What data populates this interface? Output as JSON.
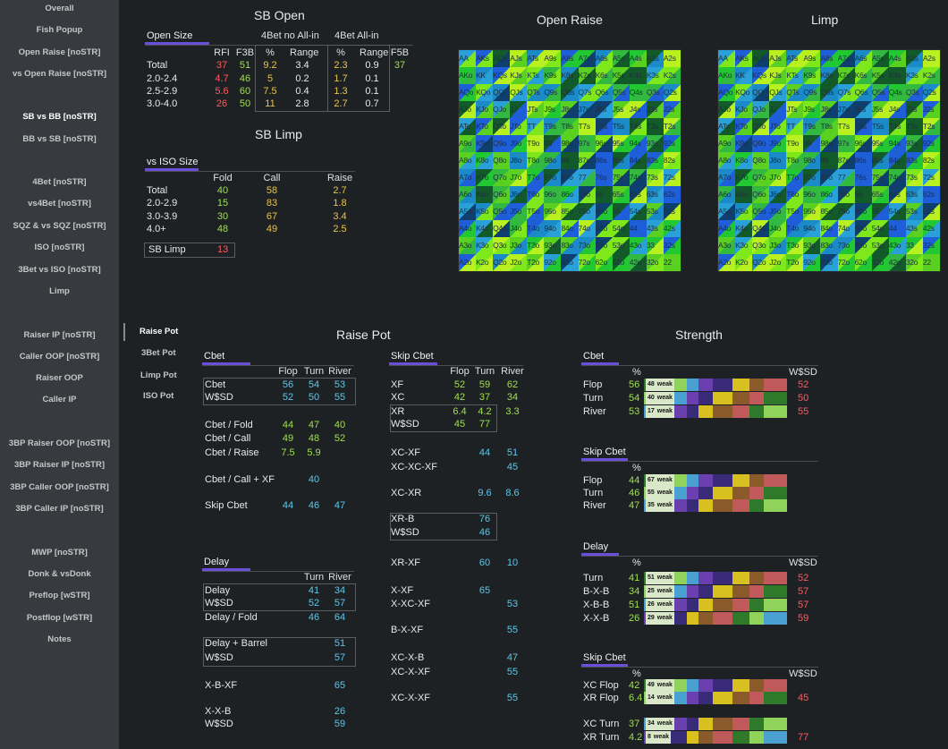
{
  "sidebar": {
    "items": [
      {
        "label": "Overall"
      },
      {
        "label": "Fish Popup"
      },
      {
        "label": "Open Raise [noSTR]"
      },
      {
        "label": "vs Open Raise [noSTR]"
      },
      {
        "label": "SB vs BB [noSTR]",
        "active": true
      },
      {
        "label": "BB vs SB [noSTR]"
      },
      {
        "label": "4Bet [noSTR]"
      },
      {
        "label": "vs4Bet [noSTR]"
      },
      {
        "label": "SQZ & vs SQZ [noSTR]"
      },
      {
        "label": "ISO [noSTR]"
      },
      {
        "label": "3Bet vs ISO [noSTR]"
      },
      {
        "label": "Limp"
      },
      {
        "label": "Raiser IP [noSTR]"
      },
      {
        "label": "Caller OOP [noSTR]"
      },
      {
        "label": "Raiser OOP"
      },
      {
        "label": "Caller IP"
      },
      {
        "label": "3BP Raiser OOP [noSTR]"
      },
      {
        "label": "3BP Raiser IP [noSTR]"
      },
      {
        "label": "3BP Caller OOP [noSTR]"
      },
      {
        "label": "3BP Caller IP [noSTR]"
      },
      {
        "label": "MWP [noSTR]"
      },
      {
        "label": "Donk & vsDonk"
      },
      {
        "label": "Preflop [wSTR]"
      },
      {
        "label": "Postflop [wSTR]"
      },
      {
        "label": "Notes"
      }
    ]
  },
  "subnav": [
    {
      "label": "Raise Pot",
      "active": true
    },
    {
      "label": "3Bet Pot"
    },
    {
      "label": "Limp Pot"
    },
    {
      "label": "ISO Pot"
    }
  ],
  "sb_open": {
    "title": "SB Open",
    "section": "Open Size",
    "group1": "4Bet no All-in",
    "group2": "4Bet All-in",
    "headers": [
      "RFI",
      "F3B",
      "%",
      "Range",
      "%",
      "Range",
      "F5B"
    ],
    "rows": [
      {
        "label": "Total",
        "rfi": "37",
        "f3b": "51",
        "p1": "9.2",
        "r1": "3.4",
        "p2": "2.3",
        "r2": "0.9",
        "f5b": "37"
      },
      {
        "label": "2.0-2.4",
        "rfi": "4.7",
        "f3b": "46",
        "p1": "5",
        "r1": "0.2",
        "p2": "1.7",
        "r2": "0.1",
        "f5b": ""
      },
      {
        "label": "2.5-2.9",
        "rfi": "5.6",
        "f3b": "60",
        "p1": "7.5",
        "r1": "0.4",
        "p2": "1.3",
        "r2": "0.1",
        "f5b": ""
      },
      {
        "label": "3.0-4.0",
        "rfi": "26",
        "f3b": "50",
        "p1": "11",
        "r1": "2.8",
        "p2": "2.7",
        "r2": "0.7",
        "f5b": ""
      }
    ]
  },
  "sb_limp": {
    "title": "SB Limp",
    "section": "vs ISO Size",
    "headers": [
      "Fold",
      "Call",
      "Raise"
    ],
    "rows": [
      {
        "label": "Total",
        "fold": "40",
        "call": "58",
        "raise": "2.7"
      },
      {
        "label": "2.0-2.9",
        "fold": "15",
        "call": "83",
        "raise": "1.8"
      },
      {
        "label": "3.0-3.9",
        "fold": "30",
        "call": "67",
        "raise": "3.4"
      },
      {
        "label": "4.0+",
        "fold": "48",
        "call": "49",
        "raise": "2.5"
      }
    ],
    "limp_label": "SB Limp",
    "limp_value": "13"
  },
  "open_raise_title": "Open Raise",
  "limp_title": "Limp",
  "hand_matrix": {
    "ranks": [
      "A",
      "K",
      "Q",
      "J",
      "T",
      "9",
      "8",
      "7",
      "6",
      "5",
      "4",
      "3",
      "2"
    ]
  },
  "raise_pot": {
    "title": "Raise Pot",
    "cbet": {
      "section": "Cbet",
      "headers": [
        "Flop",
        "Turn",
        "River"
      ],
      "rows": [
        {
          "label": "Cbet",
          "v": [
            "56",
            "54",
            "53"
          ]
        },
        {
          "label": "W$SD",
          "v": [
            "52",
            "50",
            "55"
          ]
        },
        {
          "label": "Cbet / Fold",
          "v": [
            "44",
            "47",
            "40"
          ]
        },
        {
          "label": "Cbet / Call",
          "v": [
            "49",
            "48",
            "52"
          ]
        },
        {
          "label": "Cbet / Raise",
          "v": [
            "7.5",
            "5.9",
            ""
          ]
        },
        {
          "label": "Cbet / Call + XF",
          "v": [
            "",
            "40",
            ""
          ]
        },
        {
          "label": "Skip Cbet",
          "v": [
            "44",
            "46",
            "47"
          ]
        }
      ]
    },
    "delay": {
      "section": "Delay",
      "headers": [
        "Turn",
        "River"
      ],
      "rows": [
        {
          "label": "Delay",
          "v": [
            "41",
            "34"
          ]
        },
        {
          "label": "W$SD",
          "v": [
            "52",
            "57"
          ]
        },
        {
          "label": "Delay / Fold",
          "v": [
            "46",
            "64"
          ]
        },
        {
          "label": "Delay + Barrel",
          "v": [
            "",
            "51"
          ]
        },
        {
          "label": "W$SD",
          "v": [
            "",
            "57"
          ]
        },
        {
          "label": "X-B-XF",
          "v": [
            "",
            "65"
          ]
        },
        {
          "label": "X-X-B",
          "v": [
            "",
            "26"
          ]
        },
        {
          "label": "W$SD",
          "v": [
            "",
            "59"
          ]
        }
      ]
    },
    "skip": {
      "section": "Skip Cbet",
      "headers": [
        "Flop",
        "Turn",
        "River"
      ],
      "rows": [
        {
          "label": "XF",
          "v": [
            "52",
            "59",
            "62"
          ]
        },
        {
          "label": "XC",
          "v": [
            "42",
            "37",
            "34"
          ]
        },
        {
          "label": "XR",
          "v": [
            "6.4",
            "4.2",
            "3.3"
          ]
        },
        {
          "label": "W$SD",
          "v": [
            "45",
            "77",
            ""
          ]
        },
        {
          "label": "XC-XF",
          "v": [
            "",
            "44",
            "51"
          ]
        },
        {
          "label": "XC-XC-XF",
          "v": [
            "",
            "",
            "45"
          ]
        },
        {
          "label": "XC-XR",
          "v": [
            "",
            "9.6",
            "8.6"
          ]
        },
        {
          "label": "XR-B",
          "v": [
            "",
            "76",
            ""
          ]
        },
        {
          "label": "W$SD",
          "v": [
            "",
            "46",
            ""
          ]
        },
        {
          "label": "XR-XF",
          "v": [
            "",
            "60",
            "10"
          ]
        },
        {
          "label": "X-XF",
          "v": [
            "",
            "65",
            ""
          ]
        },
        {
          "label": "X-XC-XF",
          "v": [
            "",
            "",
            "53"
          ]
        },
        {
          "label": "B-X-XF",
          "v": [
            "",
            "",
            "55"
          ]
        },
        {
          "label": "XC-X-B",
          "v": [
            "",
            "",
            "47"
          ]
        },
        {
          "label": "XC-X-XF",
          "v": [
            "",
            "",
            "55"
          ]
        },
        {
          "label": "XC-X-XF",
          "v": [
            "",
            "",
            "55"
          ]
        }
      ]
    }
  },
  "strength": {
    "title": "Strength",
    "pct": "%",
    "wsd": "W$SD",
    "weak": "weak",
    "cbet": {
      "section": "Cbet",
      "rows": [
        {
          "label": "Flop",
          "pct": "56",
          "weak": "48",
          "wsd": "52"
        },
        {
          "label": "Turn",
          "pct": "54",
          "weak": "40",
          "wsd": "50"
        },
        {
          "label": "River",
          "pct": "53",
          "weak": "17",
          "wsd": "55"
        }
      ]
    },
    "skip": {
      "section": "Skip Cbet",
      "rows": [
        {
          "label": "Flop",
          "pct": "44",
          "weak": "67",
          "wsd": ""
        },
        {
          "label": "Turn",
          "pct": "46",
          "weak": "55",
          "wsd": ""
        },
        {
          "label": "River",
          "pct": "47",
          "weak": "35",
          "wsd": ""
        }
      ]
    },
    "delay": {
      "section": "Delay",
      "rows": [
        {
          "label": "Turn",
          "pct": "41",
          "weak": "51",
          "wsd": "52"
        },
        {
          "label": "B-X-B",
          "pct": "34",
          "weak": "25",
          "wsd": "57"
        },
        {
          "label": "X-B-B",
          "pct": "51",
          "weak": "26",
          "wsd": "57"
        },
        {
          "label": "X-X-B",
          "pct": "26",
          "weak": "29",
          "wsd": "59"
        }
      ]
    },
    "skip2": {
      "section": "Skip Cbet",
      "rows": [
        {
          "label": "XC Flop",
          "pct": "42",
          "weak": "49",
          "wsd": ""
        },
        {
          "label": "XR Flop",
          "pct": "6.4",
          "weak": "14",
          "wsd": "45"
        },
        {
          "label": "XC Turn",
          "pct": "37",
          "weak": "34",
          "wsd": ""
        },
        {
          "label": "XR Turn",
          "pct": "4.2",
          "weak": "8",
          "wsd": "77"
        }
      ]
    }
  },
  "colors": {
    "accent": "#6b4fd8",
    "blue": "#5bc8ea",
    "green": "#9ee24a",
    "yellow": "#eac448",
    "red": "#ff5a5f"
  }
}
